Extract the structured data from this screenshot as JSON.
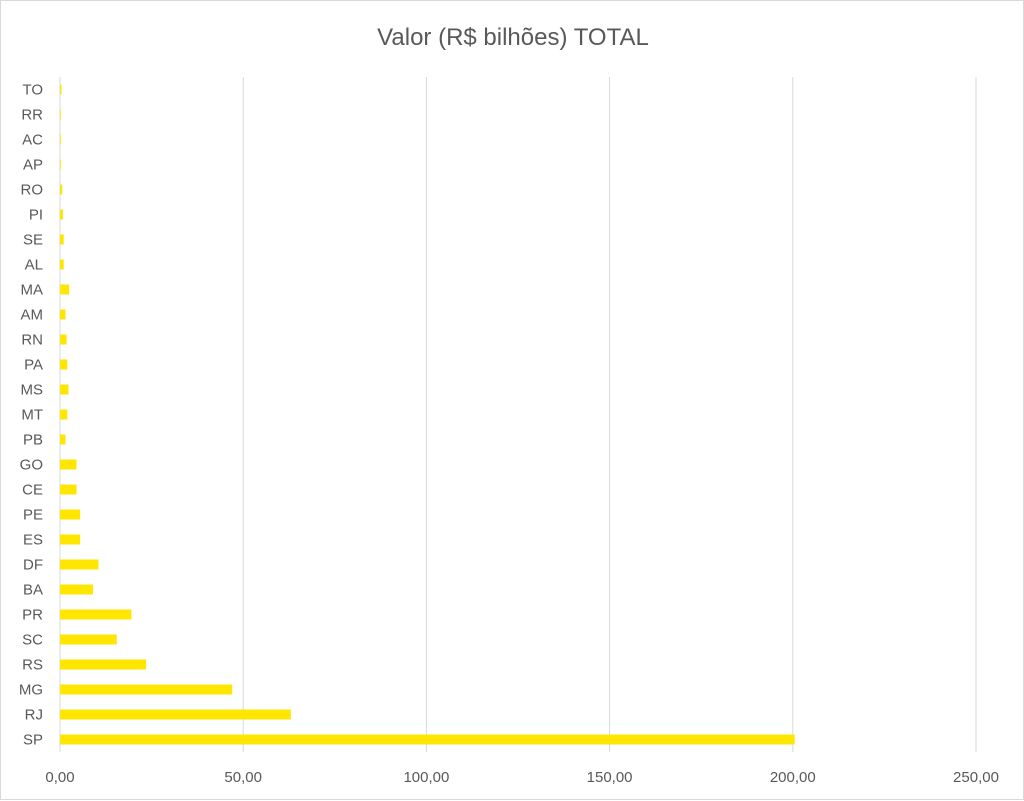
{
  "chart_data": {
    "type": "bar",
    "orientation": "horizontal",
    "title": "Valor (R$ bilhões) TOTAL",
    "xlabel": "",
    "ylabel": "",
    "bar_color": "#FFE600",
    "grid_color": "#D9D9D9",
    "text_color": "#595959",
    "grid": true,
    "legend": "none",
    "xlim": [
      0,
      250
    ],
    "x_ticks": [
      0,
      50,
      100,
      150,
      200,
      250
    ],
    "x_tick_labels": [
      "0,00",
      "50,00",
      "100,00",
      "150,00",
      "200,00",
      "250,00"
    ],
    "categories": [
      "SP",
      "RJ",
      "MG",
      "RS",
      "SC",
      "PR",
      "BA",
      "DF",
      "ES",
      "PE",
      "CE",
      "GO",
      "PB",
      "MT",
      "MS",
      "PA",
      "RN",
      "AM",
      "MA",
      "AL",
      "SE",
      "PI",
      "RO",
      "AP",
      "AC",
      "RR",
      "TO"
    ],
    "values": [
      200.5,
      63.0,
      47.0,
      23.5,
      15.5,
      19.5,
      9.0,
      10.5,
      5.5,
      5.5,
      4.5,
      4.5,
      1.5,
      2.0,
      2.3,
      2.0,
      1.8,
      1.5,
      2.5,
      1.0,
      1.0,
      0.8,
      0.6,
      0.2,
      0.2,
      0.2,
      0.4
    ]
  }
}
